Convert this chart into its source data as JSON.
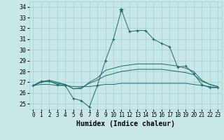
{
  "xlabel": "Humidex (Indice chaleur)",
  "background_color": "#c8e8e8",
  "grid_color": "#a8cccc",
  "line_color": "#1a6b6b",
  "xlim": [
    -0.5,
    23.5
  ],
  "ylim": [
    24.5,
    34.5
  ],
  "yticks": [
    25,
    26,
    27,
    28,
    29,
    30,
    31,
    32,
    33,
    34
  ],
  "xticks": [
    0,
    1,
    2,
    3,
    4,
    5,
    6,
    7,
    8,
    9,
    10,
    11,
    12,
    13,
    14,
    15,
    16,
    17,
    18,
    19,
    20,
    21,
    22,
    23
  ],
  "series": {
    "main": [
      26.7,
      27.1,
      27.1,
      26.8,
      26.7,
      25.5,
      25.3,
      24.7,
      26.7,
      29.0,
      31.0,
      33.7,
      31.7,
      31.8,
      31.8,
      31.0,
      30.6,
      30.3,
      28.4,
      28.5,
      27.8,
      26.8,
      26.5,
      26.5
    ],
    "line2": [
      26.7,
      27.0,
      27.2,
      27.0,
      26.8,
      26.4,
      26.4,
      27.0,
      27.4,
      28.1,
      28.3,
      28.5,
      28.6,
      28.7,
      28.7,
      28.7,
      28.7,
      28.6,
      28.5,
      28.3,
      28.0,
      27.2,
      26.8,
      26.6
    ],
    "line3": [
      26.7,
      27.0,
      27.1,
      26.9,
      26.8,
      26.4,
      26.5,
      26.9,
      27.2,
      27.6,
      27.8,
      28.0,
      28.1,
      28.2,
      28.2,
      28.2,
      28.2,
      28.1,
      28.0,
      27.9,
      27.7,
      27.1,
      26.8,
      26.6
    ],
    "line4": [
      26.7,
      26.8,
      26.8,
      26.7,
      26.7,
      26.6,
      26.6,
      26.6,
      26.7,
      26.8,
      26.8,
      26.9,
      26.9,
      26.9,
      26.9,
      26.9,
      26.9,
      26.9,
      26.9,
      26.9,
      26.8,
      26.7,
      26.6,
      26.5
    ]
  }
}
